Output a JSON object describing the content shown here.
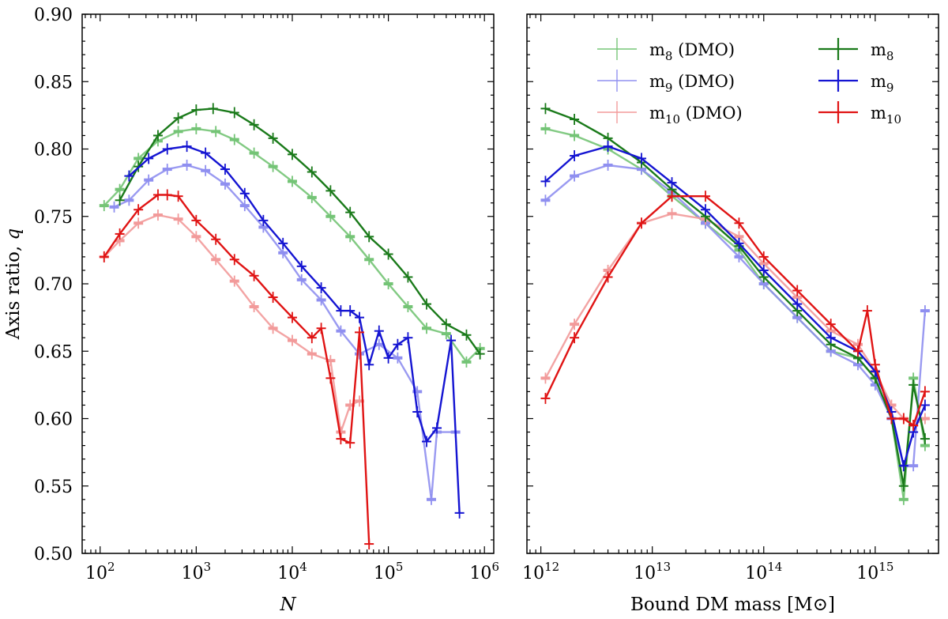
{
  "colors": {
    "m8": "#1a7a1a",
    "m9": "#1414d2",
    "m10": "#e01414",
    "m8_dmo": "#74c476",
    "m9_dmo": "#8f8ff0",
    "m10_dmo": "#f29a9a"
  },
  "chart_data": [
    {
      "type": "line",
      "panel": "left",
      "xlabel": "N",
      "ylabel": "Axis ratio, q",
      "xscale": "log",
      "xlim": [
        65,
        1250000
      ],
      "ylim": [
        0.5,
        0.9
      ],
      "x_tick_labels": [
        {
          "base": "10",
          "exp": "2"
        },
        {
          "base": "10",
          "exp": "3"
        },
        {
          "base": "10",
          "exp": "4"
        },
        {
          "base": "10",
          "exp": "5"
        },
        {
          "base": "10",
          "exp": "6"
        }
      ],
      "y_tick_labels": [
        "0.50",
        "0.55",
        "0.60",
        "0.65",
        "0.70",
        "0.75",
        "0.80",
        "0.85",
        "0.90"
      ],
      "series": [
        {
          "key": "m8_dmo",
          "x": [
            110,
            160,
            250,
            400,
            650,
            1000,
            1600,
            2500,
            4000,
            6300,
            10000,
            16000,
            25000,
            40000,
            63000,
            100000,
            160000,
            250000,
            400000,
            650000,
            900000
          ],
          "y": [
            0.758,
            0.77,
            0.793,
            0.806,
            0.813,
            0.815,
            0.813,
            0.807,
            0.797,
            0.787,
            0.776,
            0.764,
            0.75,
            0.735,
            0.718,
            0.7,
            0.683,
            0.667,
            0.663,
            0.642,
            0.652
          ]
        },
        {
          "key": "m9_dmo",
          "x": [
            140,
            200,
            320,
            500,
            800,
            1250,
            2000,
            3200,
            5000,
            8000,
            12500,
            20000,
            32000,
            50000,
            80000,
            125000,
            200000,
            280000,
            320000,
            500000
          ],
          "y": [
            0.757,
            0.762,
            0.777,
            0.785,
            0.788,
            0.784,
            0.774,
            0.758,
            0.742,
            0.723,
            0.703,
            0.688,
            0.665,
            0.648,
            0.655,
            0.645,
            0.62,
            0.54,
            0.59,
            0.59
          ]
        },
        {
          "key": "m10_dmo",
          "x": [
            110,
            160,
            250,
            400,
            650,
            1000,
            1600,
            2500,
            4000,
            6300,
            10000,
            16000,
            25000,
            32000,
            40000,
            50000
          ],
          "y": [
            0.72,
            0.732,
            0.745,
            0.751,
            0.748,
            0.735,
            0.718,
            0.702,
            0.683,
            0.667,
            0.658,
            0.648,
            0.643,
            0.59,
            0.61,
            0.613
          ]
        },
        {
          "key": "m8",
          "x": [
            160,
            250,
            400,
            650,
            1000,
            1500,
            2500,
            4000,
            6300,
            10000,
            16000,
            25000,
            40000,
            63000,
            100000,
            160000,
            250000,
            400000,
            650000,
            900000
          ],
          "y": [
            0.762,
            0.787,
            0.81,
            0.823,
            0.829,
            0.83,
            0.827,
            0.818,
            0.808,
            0.796,
            0.783,
            0.769,
            0.753,
            0.735,
            0.722,
            0.705,
            0.685,
            0.67,
            0.662,
            0.648
          ]
        },
        {
          "key": "m9",
          "x": [
            200,
            320,
            500,
            800,
            1250,
            2000,
            3200,
            5000,
            8000,
            12500,
            20000,
            32000,
            40000,
            50000,
            63000,
            80000,
            100000,
            125000,
            160000,
            200000,
            250000,
            320000,
            450000,
            550000
          ],
          "y": [
            0.78,
            0.793,
            0.8,
            0.802,
            0.797,
            0.785,
            0.767,
            0.747,
            0.73,
            0.713,
            0.697,
            0.68,
            0.68,
            0.675,
            0.64,
            0.665,
            0.645,
            0.655,
            0.66,
            0.605,
            0.583,
            0.593,
            0.658,
            0.53
          ]
        },
        {
          "key": "m10",
          "x": [
            110,
            160,
            250,
            400,
            500,
            650,
            1000,
            1600,
            2500,
            4000,
            6300,
            10000,
            16000,
            20000,
            25000,
            32000,
            40000,
            50000,
            63000
          ],
          "y": [
            0.72,
            0.737,
            0.755,
            0.766,
            0.766,
            0.765,
            0.747,
            0.733,
            0.718,
            0.706,
            0.69,
            0.675,
            0.66,
            0.667,
            0.63,
            0.585,
            0.582,
            0.664,
            0.507
          ]
        }
      ]
    },
    {
      "type": "line",
      "panel": "right",
      "xlabel": "Bound DM mass [M⊙]",
      "ylabel": "",
      "xscale": "log",
      "xlim": [
        750000000000.0,
        3700000000000000.0
      ],
      "ylim": [
        0.5,
        0.9
      ],
      "x_tick_labels": [
        {
          "base": "10",
          "exp": "12"
        },
        {
          "base": "10",
          "exp": "13"
        },
        {
          "base": "10",
          "exp": "14"
        },
        {
          "base": "10",
          "exp": "15"
        }
      ],
      "legend": {
        "location": "top-right",
        "entries": [
          {
            "key": "m8_dmo",
            "label": "m",
            "sub": "8",
            "suffix": " (DMO)"
          },
          {
            "key": "m9_dmo",
            "label": "m",
            "sub": "9",
            "suffix": " (DMO)"
          },
          {
            "key": "m10_dmo",
            "label": "m",
            "sub": "10",
            "suffix": " (DMO)"
          },
          {
            "key": "m8",
            "label": "m",
            "sub": "8",
            "suffix": ""
          },
          {
            "key": "m9",
            "label": "m",
            "sub": "9",
            "suffix": ""
          },
          {
            "key": "m10",
            "label": "m",
            "sub": "10",
            "suffix": ""
          }
        ]
      },
      "series": [
        {
          "key": "m8_dmo",
          "x": [
            1100000000000.0,
            2000000000000.0,
            4000000000000.0,
            8000000000000.0,
            15000000000000.0,
            30000000000000.0,
            60000000000000.0,
            100000000000000.0,
            200000000000000.0,
            400000000000000.0,
            700000000000000.0,
            1000000000000000.0,
            1400000000000000.0,
            1800000000000000.0,
            2200000000000000.0,
            2800000000000000.0
          ],
          "y": [
            0.815,
            0.81,
            0.8,
            0.785,
            0.765,
            0.745,
            0.725,
            0.7,
            0.675,
            0.65,
            0.645,
            0.63,
            0.6,
            0.54,
            0.63,
            0.58
          ]
        },
        {
          "key": "m9_dmo",
          "x": [
            1100000000000.0,
            2000000000000.0,
            4000000000000.0,
            8000000000000.0,
            15000000000000.0,
            30000000000000.0,
            60000000000000.0,
            100000000000000.0,
            200000000000000.0,
            400000000000000.0,
            700000000000000.0,
            1000000000000000.0,
            1400000000000000.0,
            1800000000000000.0,
            2200000000000000.0,
            2800000000000000.0
          ],
          "y": [
            0.762,
            0.78,
            0.788,
            0.785,
            0.768,
            0.745,
            0.72,
            0.7,
            0.675,
            0.65,
            0.64,
            0.625,
            0.6,
            0.565,
            0.565,
            0.68
          ]
        },
        {
          "key": "m10_dmo",
          "x": [
            1100000000000.0,
            2000000000000.0,
            4000000000000.0,
            8000000000000.0,
            15000000000000.0,
            30000000000000.0,
            60000000000000.0,
            100000000000000.0,
            200000000000000.0,
            400000000000000.0,
            700000000000000.0,
            1000000000000000.0,
            1400000000000000.0,
            1800000000000000.0,
            2200000000000000.0,
            2800000000000000.0
          ],
          "y": [
            0.63,
            0.67,
            0.71,
            0.745,
            0.752,
            0.748,
            0.735,
            0.715,
            0.69,
            0.665,
            0.655,
            0.635,
            0.61,
            0.6,
            0.595,
            0.6
          ]
        },
        {
          "key": "m8",
          "x": [
            1100000000000.0,
            2000000000000.0,
            4000000000000.0,
            8000000000000.0,
            15000000000000.0,
            30000000000000.0,
            60000000000000.0,
            100000000000000.0,
            200000000000000.0,
            400000000000000.0,
            700000000000000.0,
            1000000000000000.0,
            1400000000000000.0,
            1800000000000000.0,
            2200000000000000.0,
            2800000000000000.0
          ],
          "y": [
            0.83,
            0.822,
            0.808,
            0.79,
            0.77,
            0.75,
            0.728,
            0.705,
            0.68,
            0.655,
            0.645,
            0.63,
            0.6,
            0.55,
            0.625,
            0.585
          ]
        },
        {
          "key": "m9",
          "x": [
            1100000000000.0,
            2000000000000.0,
            4000000000000.0,
            8000000000000.0,
            15000000000000.0,
            30000000000000.0,
            60000000000000.0,
            100000000000000.0,
            200000000000000.0,
            400000000000000.0,
            700000000000000.0,
            1000000000000000.0,
            1400000000000000.0,
            1800000000000000.0,
            2200000000000000.0,
            2800000000000000.0
          ],
          "y": [
            0.776,
            0.795,
            0.802,
            0.793,
            0.775,
            0.755,
            0.73,
            0.71,
            0.685,
            0.66,
            0.65,
            0.635,
            0.605,
            0.565,
            0.59,
            0.61
          ]
        },
        {
          "key": "m10",
          "x": [
            1100000000000.0,
            2000000000000.0,
            4000000000000.0,
            8000000000000.0,
            15000000000000.0,
            30000000000000.0,
            60000000000000.0,
            100000000000000.0,
            200000000000000.0,
            400000000000000.0,
            700000000000000.0,
            850000000000000.0,
            1000000000000000.0,
            1400000000000000.0,
            1800000000000000.0,
            2200000000000000.0,
            2800000000000000.0
          ],
          "y": [
            0.615,
            0.66,
            0.705,
            0.745,
            0.765,
            0.765,
            0.745,
            0.72,
            0.695,
            0.67,
            0.65,
            0.68,
            0.64,
            0.6,
            0.6,
            0.595,
            0.62
          ]
        }
      ]
    }
  ]
}
